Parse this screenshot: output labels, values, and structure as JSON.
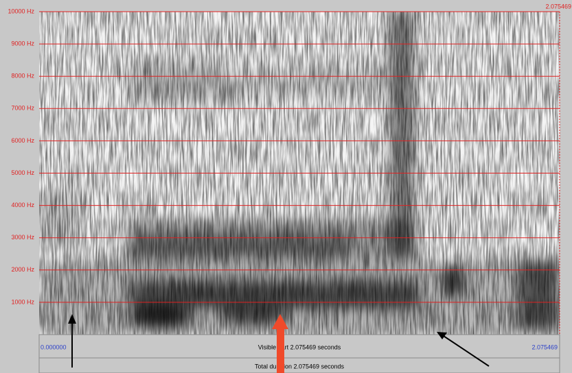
{
  "spectrogram": {
    "top_right_time": "2.075469",
    "frequency_labels": [
      "10000 Hz",
      "9000 Hz",
      "8000 Hz",
      "7000 Hz",
      "6000 Hz",
      "5000 Hz",
      "4000 Hz",
      "3000 Hz",
      "2000 Hz",
      "1000 Hz"
    ]
  },
  "status_bar": {
    "start_time": "0.000000",
    "visible_part": "Visible part 2.075469 seconds",
    "end_time": "2.075469",
    "total_duration": "Total duration 2.075469 seconds"
  }
}
